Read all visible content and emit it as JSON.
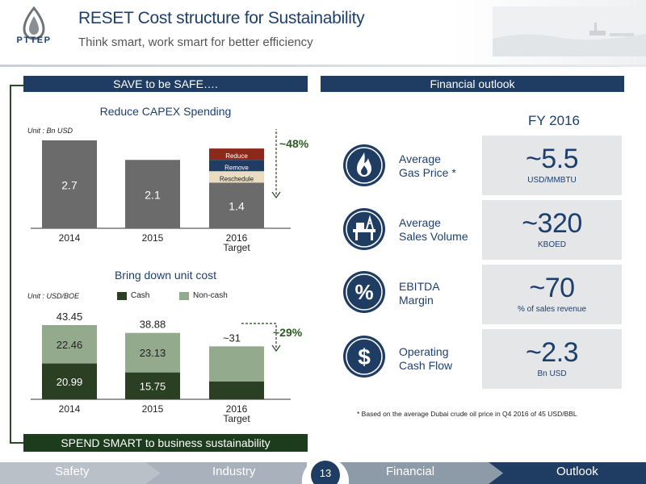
{
  "header": {
    "brand": "PTTEP",
    "title": "RESET Cost structure for Sustainability",
    "subtitle": "Think smart, work smart for better efficiency"
  },
  "save_section": {
    "banner": "SAVE to be SAFE….",
    "capex": {
      "title": "Reduce CAPEX Spending",
      "unit": "Unit : Bn USD",
      "change": "~48%",
      "segments": [
        "Reduce",
        "Remove",
        "Reschedule"
      ]
    },
    "unit_cost": {
      "title": "Bring down unit cost",
      "unit": "Unit : USD/BOE",
      "legend": [
        "Cash",
        "Non-cash"
      ],
      "change": "~29%",
      "totals": [
        "43.45",
        "38.88",
        "~31"
      ]
    }
  },
  "spend_banner": "SPEND SMART to business sustainability",
  "financial": {
    "banner": "Financial outlook",
    "period": "FY 2016",
    "metrics": [
      {
        "label_line1": "Average",
        "label_line2": "Gas Price *",
        "value": "~5.5",
        "unit": "USD/MMBTU",
        "icon": "flame-icon"
      },
      {
        "label_line1": "Average",
        "label_line2": "Sales Volume",
        "value": "~320",
        "unit": "KBOED",
        "icon": "oil-platform-icon"
      },
      {
        "label_line1": "EBITDA",
        "label_line2": "Margin",
        "value": "~70",
        "unit": "% of sales revenue",
        "icon": "percent-icon"
      },
      {
        "label_line1": "Operating",
        "label_line2": "Cash Flow",
        "value": "~2.3",
        "unit": "Bn USD",
        "icon": "dollar-icon"
      }
    ],
    "footnote": "* Based on the average Dubai crude oil price in Q4 2016 of 45 USD/BBL"
  },
  "footer": {
    "steps": [
      "Safety",
      "Industry",
      "Financial",
      "Outlook"
    ],
    "page": "13"
  },
  "colors": {
    "navy": "#1f3d63",
    "dark_green": "#2b3f22",
    "light_green": "#93aa8d",
    "gray_bar": "#6b6b6b"
  },
  "chart_data": [
    {
      "type": "bar",
      "title": "Reduce CAPEX Spending",
      "ylabel": "Unit : Bn USD",
      "categories": [
        "2014",
        "2015",
        "2016 Target"
      ],
      "values": [
        2.7,
        2.1,
        1.4
      ],
      "ylim": [
        0,
        3
      ],
      "annotation": "~48%"
    },
    {
      "type": "bar",
      "title": "Bring down unit cost",
      "ylabel": "Unit : USD/BOE",
      "categories": [
        "2014",
        "2015",
        "2016 Target"
      ],
      "series": [
        {
          "name": "Cash",
          "values": [
            20.99,
            15.75,
            null
          ]
        },
        {
          "name": "Non-cash",
          "values": [
            22.46,
            23.13,
            null
          ]
        }
      ],
      "totals": [
        43.45,
        38.88,
        31
      ],
      "annotation": "~29%"
    }
  ]
}
